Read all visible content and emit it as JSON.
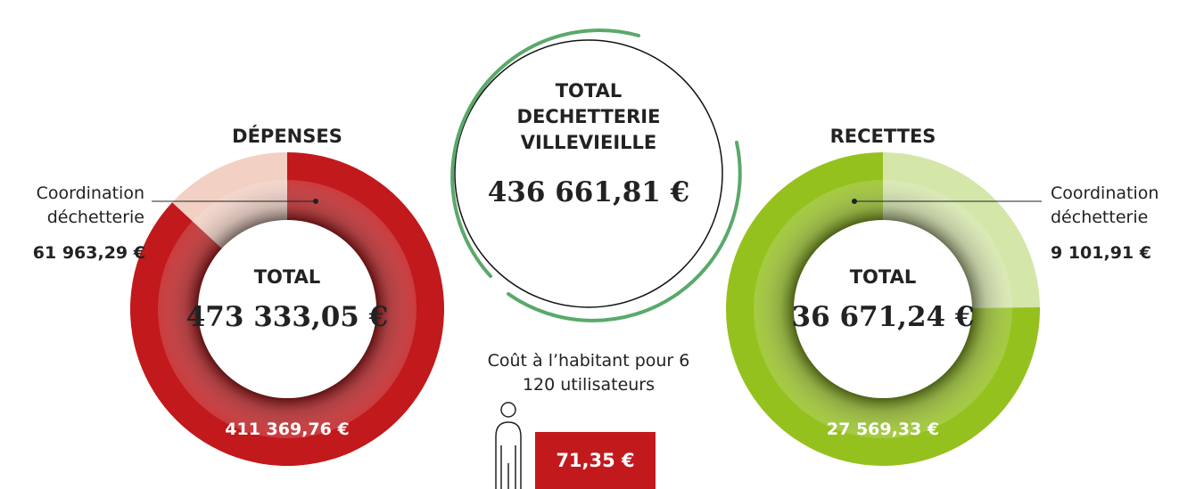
{
  "chart_data": [
    {
      "type": "pie",
      "title": "DÉPENSES",
      "categories": [
        "Coordination déchetterie",
        null
      ],
      "values": [
        61963.29,
        411369.76
      ],
      "value_labels": [
        "61 963,29 €",
        "411 369,76 €"
      ],
      "colors": [
        "#f2d0c4",
        "#c1191c"
      ],
      "direction": "counterclockwise",
      "total_title": "TOTAL",
      "total": "473 333,05 €"
    },
    {
      "type": "pie",
      "title": "RECETTES",
      "categories": [
        "Coordination déchetterie",
        null
      ],
      "values": [
        9101.91,
        27569.33
      ],
      "value_labels": [
        "9 101,91 €",
        "27 569,33 €"
      ],
      "colors": [
        "#d5e6a9",
        "#95c11f"
      ],
      "direction": "clockwise",
      "total_title": "TOTAL",
      "total": "36 671,24 €"
    }
  ],
  "center": {
    "title": "TOTAL DECHETTERIE VILLEVIEILLE",
    "total": "436 661,81 €"
  },
  "habitant": {
    "caption": "Coût à l’habitant pour 6 120 utilisateurs",
    "value": "71,35 €"
  }
}
